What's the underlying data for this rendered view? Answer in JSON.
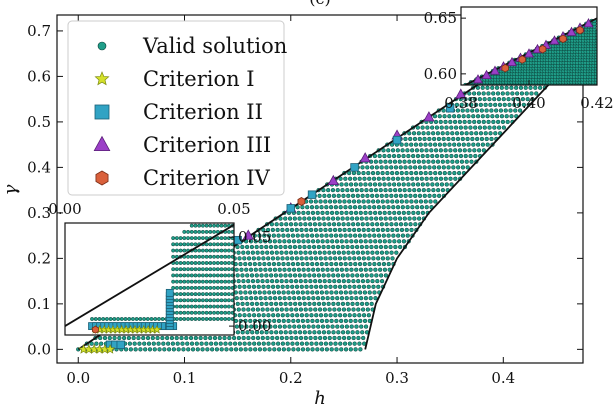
{
  "chart_data": {
    "type": "scatter",
    "title_partial": "(c)",
    "xlabel": "h",
    "ylabel": "γ",
    "xlim": [
      -0.02,
      0.475
    ],
    "ylim": [
      -0.03,
      0.735
    ],
    "xticks": [
      0.0,
      0.1,
      0.2,
      0.3,
      0.4
    ],
    "xtick_labels": [
      "0.0",
      "0.1",
      "0.2",
      "0.3",
      "0.4"
    ],
    "yticks": [
      0.0,
      0.1,
      0.2,
      0.3,
      0.4,
      0.5,
      0.6,
      0.7
    ],
    "ytick_labels": [
      "0.0",
      "0.1",
      "0.2",
      "0.3",
      "0.4",
      "0.5",
      "0.6",
      "0.7"
    ],
    "legend_position": "top-left",
    "legend": [
      {
        "name": "Valid solution",
        "marker": "circle",
        "color": "#1f9e89",
        "edge": "#0b3d36"
      },
      {
        "name": "Criterion I",
        "marker": "star",
        "color": "#d4e02a",
        "edge": "#7a8a10"
      },
      {
        "name": "Criterion II",
        "marker": "square",
        "color": "#31a3c4",
        "edge": "#1a5f75"
      },
      {
        "name": "Criterion III",
        "marker": "triangle",
        "color": "#9b3fc7",
        "edge": "#5a1f78"
      },
      {
        "name": "Criterion IV",
        "marker": "hexagon",
        "color": "#d9603b",
        "edge": "#7a2d17"
      }
    ],
    "boundary_curves": [
      {
        "description": "upper straight boundary",
        "points": [
          [
            0.0,
            0.0
          ],
          [
            0.475,
            0.735
          ]
        ]
      },
      {
        "description": "lower curved boundary",
        "points": [
          [
            0.27,
            0.0
          ],
          [
            0.28,
            0.1
          ],
          [
            0.3,
            0.2
          ],
          [
            0.33,
            0.3
          ],
          [
            0.37,
            0.4
          ],
          [
            0.41,
            0.5
          ],
          [
            0.45,
            0.6
          ],
          [
            0.475,
            0.66
          ]
        ]
      }
    ],
    "valid_region": {
      "x_range": [
        0.0,
        0.47
      ],
      "y_max_line": "gamma = 1.56*h",
      "x_min_curve": "lower boundary",
      "color": "#1f9e89"
    },
    "criterion_I_points": [
      [
        0.005,
        0.0
      ],
      [
        0.01,
        0.0
      ],
      [
        0.015,
        0.0
      ],
      [
        0.02,
        0.0
      ],
      [
        0.025,
        0.0
      ],
      [
        0.03,
        0.0
      ]
    ],
    "criterion_II_points": [
      [
        0.03,
        0.01
      ],
      [
        0.035,
        0.01
      ],
      [
        0.04,
        0.01
      ],
      [
        0.09,
        0.17
      ],
      [
        0.1,
        0.18
      ],
      [
        0.15,
        0.24
      ],
      [
        0.2,
        0.31
      ],
      [
        0.22,
        0.34
      ],
      [
        0.26,
        0.4
      ],
      [
        0.3,
        0.46
      ],
      [
        0.35,
        0.53
      ]
    ],
    "criterion_III_points": [
      [
        0.08,
        0.125
      ],
      [
        0.12,
        0.185
      ],
      [
        0.16,
        0.25
      ],
      [
        0.2,
        0.31
      ],
      [
        0.24,
        0.37
      ],
      [
        0.27,
        0.42
      ],
      [
        0.3,
        0.47
      ],
      [
        0.33,
        0.51
      ],
      [
        0.36,
        0.56
      ],
      [
        0.39,
        0.6
      ],
      [
        0.42,
        0.65
      ]
    ],
    "criterion_IV_points": [
      [
        0.21,
        0.325
      ],
      [
        0.38,
        0.59
      ],
      [
        0.4,
        0.62
      ],
      [
        0.41,
        0.635
      ]
    ],
    "inset_top_right": {
      "xlim": [
        0.38,
        0.42
      ],
      "ylim": [
        0.59,
        0.66
      ],
      "xticks": [
        0.38,
        0.4,
        0.42
      ],
      "xtick_labels": [
        "0.38",
        "0.40",
        "0.42"
      ],
      "yticks": [
        0.6,
        0.65
      ],
      "ytick_labels": [
        "0.60",
        "0.65"
      ]
    },
    "inset_bottom_left": {
      "xlim": [
        0.0,
        0.05
      ],
      "ylim": [
        -0.005,
        0.058
      ],
      "xticks": [
        0.0,
        0.05
      ],
      "xtick_labels": [
        "0.00",
        "0.05"
      ],
      "yticks": [
        0.0,
        0.05
      ],
      "ytick_labels": [
        "0.00",
        "0.05"
      ]
    }
  }
}
